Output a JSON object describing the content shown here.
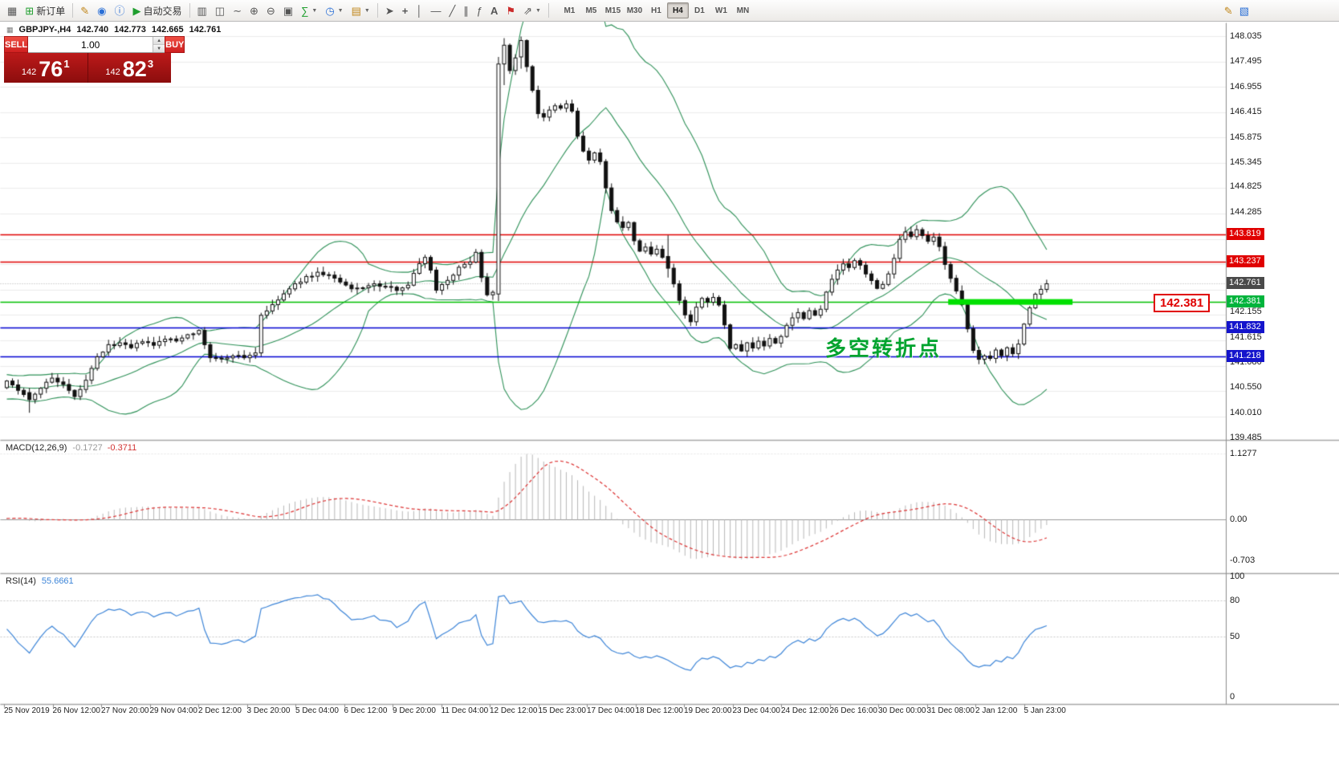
{
  "toolbar": {
    "new_order_label": "新订单",
    "autotrading_label": "自动交易",
    "timeframes": [
      "M1",
      "M5",
      "M15",
      "M30",
      "H1",
      "H4",
      "D1",
      "W1",
      "MN"
    ],
    "active_timeframe": "H4"
  },
  "header": {
    "symbol": "GBPJPY-,H4",
    "open": "142.740",
    "high": "142.773",
    "low": "142.665",
    "close": "142.761"
  },
  "trade_panel": {
    "sell_label": "SELL",
    "buy_label": "BUY",
    "volume": "1.00",
    "sell": {
      "small": "142",
      "big": "76",
      "sup": "1"
    },
    "buy": {
      "small": "142",
      "big": "82",
      "sup": "3"
    }
  },
  "annotation": {
    "text": "多空转折点",
    "color": "#00a32e"
  },
  "callout": {
    "text": "142.381"
  },
  "indicators": {
    "macd_label": "MACD(12,26,9)",
    "macd_value": "-0.1727",
    "macd_signal_value": "-0.3711",
    "macd_scale": [
      "1.1277",
      "0.00",
      "-0.703"
    ],
    "rsi_label": "RSI(14)",
    "rsi_value": "55.6661",
    "rsi_scale": [
      "100",
      "80",
      "50",
      "0"
    ]
  },
  "price_scale": {
    "labels": [
      "148.035",
      "147.495",
      "146.955",
      "146.415",
      "145.875",
      "145.345",
      "144.825",
      "144.285",
      "142.155",
      "141.615",
      "141.080",
      "140.550",
      "140.010",
      "139.485"
    ],
    "badges": [
      {
        "text": "143.819",
        "color": "#e00000"
      },
      {
        "text": "143.237",
        "color": "#e00000"
      },
      {
        "text": "142.761",
        "color": "#4a4a4a"
      },
      {
        "text": "142.381",
        "color": "#00b43c"
      },
      {
        "text": "141.832",
        "color": "#1414cc"
      },
      {
        "text": "141.218",
        "color": "#1414cc"
      }
    ]
  },
  "time_axis": {
    "labels": [
      "25 Nov 2019",
      "26 Nov 12:00",
      "27 Nov 20:00",
      "29 Nov 04:00",
      "2 Dec 12:00",
      "3 Dec 20:00",
      "5 Dec 04:00",
      "6 Dec 12:00",
      "9 Dec 20:00",
      "11 Dec 04:00",
      "12 Dec 12:00",
      "15 Dec 23:00",
      "17 Dec 04:00",
      "18 Dec 12:00",
      "19 Dec 20:00",
      "23 Dec 04:00",
      "24 Dec 12:00",
      "26 Dec 16:00",
      "30 Dec 00:00",
      "31 Dec 08:00",
      "2 Jan 12:00",
      "5 Jan 23:00"
    ]
  },
  "chart_data": {
    "type": "candlestick",
    "symbol": "GBPJPY-,H4",
    "price_range": [
      139.45,
      148.34
    ],
    "grid_step": 0.54,
    "grid_top": 148.035,
    "num_candles": 185,
    "close_path": [
      [
        0,
        140.7
      ],
      [
        2,
        140.5
      ],
      [
        4,
        140.3
      ],
      [
        6,
        140.55
      ],
      [
        8,
        140.75
      ],
      [
        10,
        140.6
      ],
      [
        12,
        140.35
      ],
      [
        14,
        140.7
      ],
      [
        16,
        141.2
      ],
      [
        18,
        141.45
      ],
      [
        20,
        141.5
      ],
      [
        22,
        141.4
      ],
      [
        24,
        141.55
      ],
      [
        26,
        141.45
      ],
      [
        28,
        141.6
      ],
      [
        30,
        141.55
      ],
      [
        32,
        141.7
      ],
      [
        34,
        141.75
      ],
      [
        36,
        141.2
      ],
      [
        38,
        141.15
      ],
      [
        40,
        141.25
      ],
      [
        42,
        141.2
      ],
      [
        44,
        141.3
      ],
      [
        45,
        142.1
      ],
      [
        47,
        142.3
      ],
      [
        49,
        142.55
      ],
      [
        51,
        142.75
      ],
      [
        53,
        142.9
      ],
      [
        55,
        143.0
      ],
      [
        57,
        142.95
      ],
      [
        59,
        142.8
      ],
      [
        61,
        142.65
      ],
      [
        63,
        142.7
      ],
      [
        65,
        142.75
      ],
      [
        67,
        142.7
      ],
      [
        69,
        142.65
      ],
      [
        71,
        142.75
      ],
      [
        73,
        143.2
      ],
      [
        74,
        143.35
      ],
      [
        75,
        143.05
      ],
      [
        76,
        142.65
      ],
      [
        78,
        142.85
      ],
      [
        80,
        143.1
      ],
      [
        82,
        143.25
      ],
      [
        83,
        143.45
      ],
      [
        84,
        142.9
      ],
      [
        85,
        142.55
      ],
      [
        86,
        142.6
      ],
      [
        87,
        147.45
      ],
      [
        88,
        147.85
      ],
      [
        89,
        147.3
      ],
      [
        90,
        147.6
      ],
      [
        91,
        147.95
      ],
      [
        92,
        147.4
      ],
      [
        93,
        146.9
      ],
      [
        94,
        146.4
      ],
      [
        95,
        146.3
      ],
      [
        96,
        146.45
      ],
      [
        97,
        146.55
      ],
      [
        98,
        146.5
      ],
      [
        99,
        146.6
      ],
      [
        100,
        146.45
      ],
      [
        101,
        145.9
      ],
      [
        102,
        145.6
      ],
      [
        103,
        145.4
      ],
      [
        104,
        145.55
      ],
      [
        105,
        145.35
      ],
      [
        106,
        144.8
      ],
      [
        107,
        144.35
      ],
      [
        108,
        144.1
      ],
      [
        109,
        143.95
      ],
      [
        110,
        144.05
      ],
      [
        111,
        143.7
      ],
      [
        112,
        143.45
      ],
      [
        113,
        143.55
      ],
      [
        114,
        143.4
      ],
      [
        115,
        143.5
      ],
      [
        116,
        143.35
      ],
      [
        117,
        143.1
      ],
      [
        118,
        142.75
      ],
      [
        119,
        142.4
      ],
      [
        120,
        142.1
      ],
      [
        121,
        141.95
      ],
      [
        122,
        142.25
      ],
      [
        123,
        142.45
      ],
      [
        124,
        142.35
      ],
      [
        125,
        142.5
      ],
      [
        126,
        142.3
      ],
      [
        127,
        141.9
      ],
      [
        128,
        141.4
      ],
      [
        129,
        141.45
      ],
      [
        130,
        141.35
      ],
      [
        131,
        141.5
      ],
      [
        132,
        141.4
      ],
      [
        133,
        141.55
      ],
      [
        134,
        141.45
      ],
      [
        135,
        141.6
      ],
      [
        136,
        141.5
      ],
      [
        137,
        141.65
      ],
      [
        138,
        141.9
      ],
      [
        139,
        142.05
      ],
      [
        140,
        142.15
      ],
      [
        141,
        142.05
      ],
      [
        142,
        142.2
      ],
      [
        143,
        142.1
      ],
      [
        144,
        142.25
      ],
      [
        145,
        142.6
      ],
      [
        146,
        142.85
      ],
      [
        147,
        143.05
      ],
      [
        148,
        143.2
      ],
      [
        149,
        143.1
      ],
      [
        150,
        143.25
      ],
      [
        151,
        143.15
      ],
      [
        152,
        143.0
      ],
      [
        153,
        142.85
      ],
      [
        154,
        142.65
      ],
      [
        155,
        142.75
      ],
      [
        156,
        143.0
      ],
      [
        157,
        143.3
      ],
      [
        158,
        143.7
      ],
      [
        159,
        143.85
      ],
      [
        160,
        143.75
      ],
      [
        161,
        143.9
      ],
      [
        162,
        143.8
      ],
      [
        163,
        143.65
      ],
      [
        164,
        143.75
      ],
      [
        165,
        143.55
      ],
      [
        166,
        143.2
      ],
      [
        167,
        142.9
      ],
      [
        168,
        142.6
      ],
      [
        169,
        142.3
      ],
      [
        170,
        141.8
      ],
      [
        171,
        141.35
      ],
      [
        172,
        141.15
      ],
      [
        173,
        141.25
      ],
      [
        174,
        141.2
      ],
      [
        175,
        141.35
      ],
      [
        176,
        141.25
      ],
      [
        177,
        141.4
      ],
      [
        178,
        141.3
      ],
      [
        179,
        141.5
      ],
      [
        180,
        141.9
      ],
      [
        181,
        142.25
      ],
      [
        182,
        142.55
      ],
      [
        183,
        142.65
      ],
      [
        184,
        142.761
      ]
    ],
    "candle_overrides": {
      "4": [
        140.45,
        140.55,
        140.02,
        140.3
      ],
      "87": [
        142.55,
        147.6,
        142.4,
        147.45
      ],
      "88": [
        147.45,
        148.0,
        147.0,
        147.85
      ],
      "91": [
        147.6,
        148.035,
        147.35,
        147.95
      ],
      "117": [
        143.35,
        143.8,
        142.9,
        143.1
      ]
    },
    "hlines": [
      {
        "price": 143.819,
        "color": "#e00000",
        "style": "solid",
        "name": "resistance-upper"
      },
      {
        "price": 143.237,
        "color": "#e00000",
        "style": "solid",
        "name": "resistance-lower"
      },
      {
        "price": 142.761,
        "color": "#b0b0b0",
        "style": "dot",
        "name": "current-price"
      },
      {
        "price": 142.381,
        "color": "#00c000",
        "style": "solid",
        "name": "pivot-level"
      },
      {
        "price": 141.832,
        "color": "#0000d2",
        "style": "solid",
        "name": "support-upper"
      },
      {
        "price": 141.218,
        "color": "#0000d2",
        "style": "solid",
        "name": "support-lower"
      }
    ],
    "highlight_segment": {
      "price": 142.381,
      "from_candle": 167,
      "to_candle": 189,
      "color": "#00e000",
      "thickness": 7
    },
    "bollinger": {
      "period": 20,
      "deviation": 2,
      "color": "#2e9158"
    },
    "macd": {
      "fast": 12,
      "slow": 26,
      "signal": 9,
      "peak": 1.1277,
      "end_macd": -0.1727,
      "end_signal": -0.3711,
      "histogram_color": "#b8b8b8",
      "signal_color": "#dd3333",
      "zero_color": "#9a9a9a"
    },
    "rsi": {
      "period": 14,
      "end": 55.6661,
      "levels": [
        80,
        50
      ],
      "color": "#3d85d8"
    },
    "candle_colors": {
      "up": "#ffffff",
      "down": "#111111",
      "border": "#111111"
    },
    "grid_color": "#ebebeb"
  }
}
